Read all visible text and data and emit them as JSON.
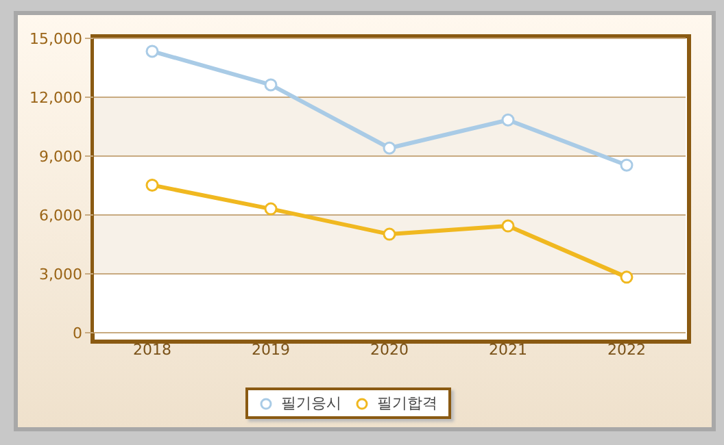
{
  "chart_data": {
    "type": "line",
    "categories": [
      "2018",
      "2019",
      "2020",
      "2021",
      "2022"
    ],
    "series": [
      {
        "name": "필기응시",
        "color": "#a9cbe6",
        "values": [
          14340,
          12630,
          9410,
          10840,
          8540
        ]
      },
      {
        "name": "필기합격",
        "color": "#f0b820",
        "values": [
          7520,
          6310,
          5020,
          5440,
          2830
        ]
      }
    ],
    "ylim": [
      0,
      15000
    ],
    "yticks": [
      {
        "value": 0,
        "label": "0"
      },
      {
        "value": 3000,
        "label": "3,000"
      },
      {
        "value": 6000,
        "label": "6,000"
      },
      {
        "value": 9000,
        "label": "9,000"
      },
      {
        "value": 12000,
        "label": "12,000"
      },
      {
        "value": 15000,
        "label": "15,000"
      }
    ],
    "grid": "y",
    "legend": "bottom",
    "marker": "circle",
    "line_style": "solid"
  }
}
